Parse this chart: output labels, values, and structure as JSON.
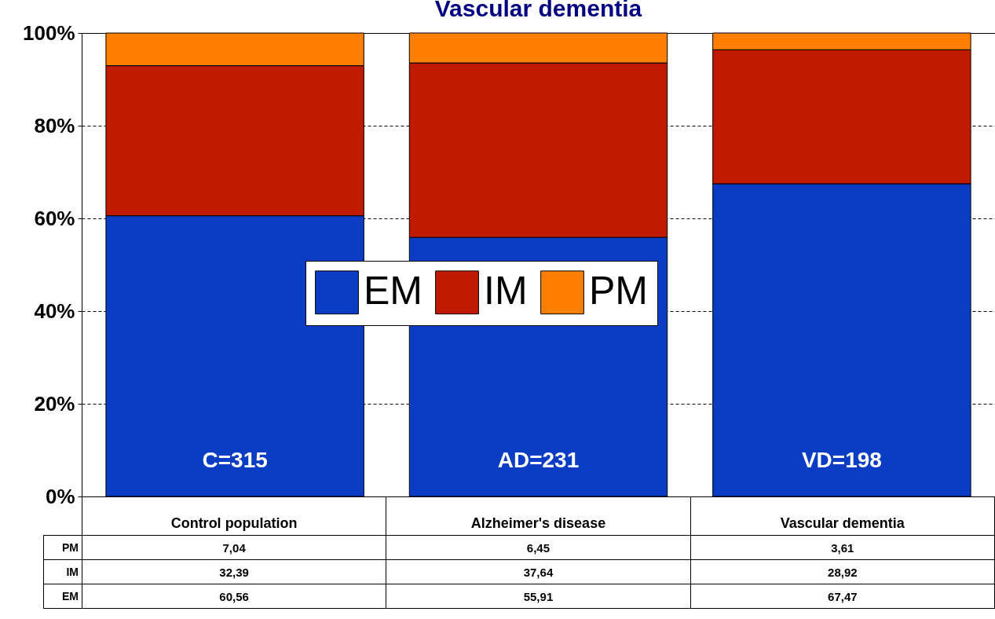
{
  "chart_data": {
    "type": "bar",
    "title": "Vascular dementia",
    "stacked": true,
    "categories": [
      "Control population",
      "Alzheimer's disease",
      "Vascular dementia"
    ],
    "series": [
      {
        "name": "EM",
        "color": "#0a3cc4",
        "values": [
          60.56,
          55.91,
          67.47
        ],
        "value_labels": [
          "60,56",
          "55,91",
          "67,47"
        ]
      },
      {
        "name": "IM",
        "color": "#c01a00",
        "values": [
          32.39,
          37.64,
          28.92
        ],
        "value_labels": [
          "32,39",
          "37,64",
          "28,92"
        ]
      },
      {
        "name": "PM",
        "color": "#ff8000",
        "values": [
          7.04,
          6.45,
          3.61
        ],
        "value_labels": [
          "7,04",
          "6,45",
          "3,61"
        ]
      }
    ],
    "ylim": [
      0,
      100
    ],
    "yticks": [
      {
        "value": 0,
        "label": "0%"
      },
      {
        "value": 20,
        "label": "20%"
      },
      {
        "value": 40,
        "label": "40%"
      },
      {
        "value": 60,
        "label": "60%"
      },
      {
        "value": 80,
        "label": "80%"
      },
      {
        "value": 100,
        "label": "100%"
      }
    ],
    "grid": "y",
    "legend": "center",
    "annotations": [
      "C=315",
      "AD=231",
      "VD=198"
    ]
  }
}
